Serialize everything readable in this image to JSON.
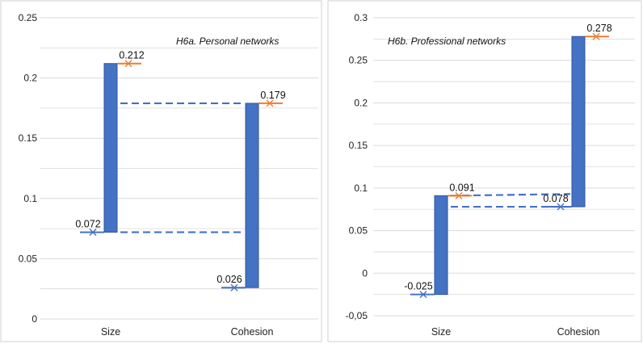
{
  "colors": {
    "bar": "#4472C4",
    "bar_edge": "#2F5597",
    "start_marker": "#4472C4",
    "end_marker": "#ED7D31",
    "dashed": "#4472C4",
    "grid": "#D9D9D9",
    "frame": "#D0D0D0"
  },
  "chart_data": [
    {
      "type": "bar",
      "title": "H6a. Personal networks",
      "categories": [
        "Size",
        "Cohesion"
      ],
      "ylim": [
        0,
        0.25
      ],
      "y_ticks": [
        0,
        0.05,
        0.1,
        0.15,
        0.2,
        0.25
      ],
      "y_tick_labels": [
        "0",
        "0.05",
        "0.1",
        "0.15",
        "0.2",
        "0.25"
      ],
      "grid": "horizontal",
      "bars": [
        {
          "category": "Size",
          "start": 0.072,
          "end": 0.212,
          "start_label": "0.072",
          "end_label": "0.212"
        },
        {
          "category": "Cohesion",
          "start": 0.026,
          "end": 0.179,
          "start_label": "0.026",
          "end_label": "0.179"
        }
      ],
      "connectors": [
        {
          "from": "Size",
          "to": "Cohesion",
          "value": 0.072
        },
        {
          "from": "Size",
          "to": "Cohesion",
          "value": 0.179
        }
      ]
    },
    {
      "type": "bar",
      "title": "H6b. Professional networks",
      "categories": [
        "Size",
        "Cohesion"
      ],
      "ylim": [
        -0.05,
        0.3
      ],
      "y_ticks": [
        -0.05,
        0,
        0.05,
        0.1,
        0.15,
        0.2,
        0.25,
        0.3
      ],
      "y_tick_labels": [
        "-0,05",
        "0",
        "0.05",
        "0.1",
        "0.15",
        "0.2",
        "0.25",
        "0.3"
      ],
      "grid": "horizontal",
      "bars": [
        {
          "category": "Size",
          "start": -0.025,
          "end": 0.091,
          "start_label": "-0.025",
          "end_label": "0.091"
        },
        {
          "category": "Cohesion",
          "start": 0.078,
          "end": 0.278,
          "start_label": "0.078",
          "end_label": "0.278"
        }
      ],
      "connectors": [
        {
          "from": "Size",
          "to": "Cohesion",
          "value": 0.078
        },
        {
          "from_value": 0.091,
          "to_value": 0.093,
          "from": "Size",
          "to": "Cohesion"
        }
      ]
    }
  ]
}
